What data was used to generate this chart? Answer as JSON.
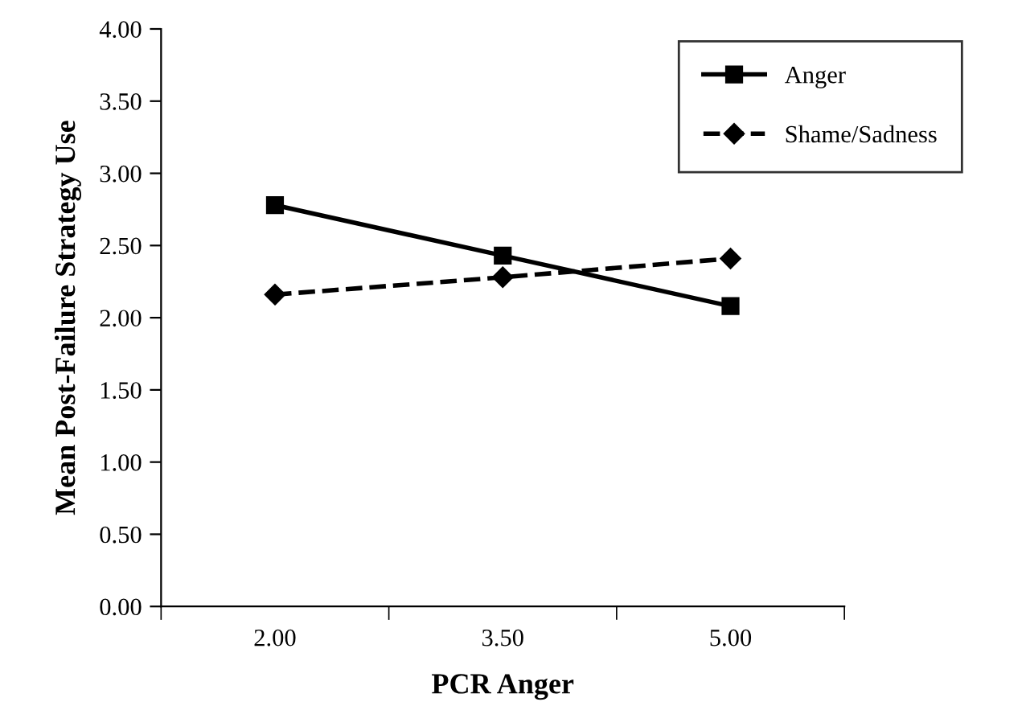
{
  "chart_data": {
    "type": "line",
    "xlabel": "PCR Anger",
    "ylabel": "Mean Post-Failure Strategy Use",
    "categories": [
      "2.00",
      "3.50",
      "5.00"
    ],
    "series": [
      {
        "name": "Anger",
        "color": "#000000",
        "values": [
          2.78,
          2.43,
          2.08
        ],
        "marker": "square",
        "line_style": "solid"
      },
      {
        "name": "Shame/Sadness",
        "color": "#000000",
        "values": [
          2.16,
          2.28,
          2.41
        ],
        "marker": "diamond",
        "line_style": "dashed"
      }
    ],
    "ylim": [
      0,
      4
    ],
    "yticks": [
      {
        "value": 0,
        "label": "0.00"
      },
      {
        "value": 0.5,
        "label": "0.50"
      },
      {
        "value": 1,
        "label": "1.00"
      },
      {
        "value": 1.5,
        "label": "1.50"
      },
      {
        "value": 2,
        "label": "2.00"
      },
      {
        "value": 2.5,
        "label": "2.50"
      },
      {
        "value": 3,
        "label": "3.00"
      },
      {
        "value": 3.5,
        "label": "3.50"
      },
      {
        "value": 4,
        "label": "4.00"
      }
    ],
    "grid": false,
    "legend": "top right"
  }
}
